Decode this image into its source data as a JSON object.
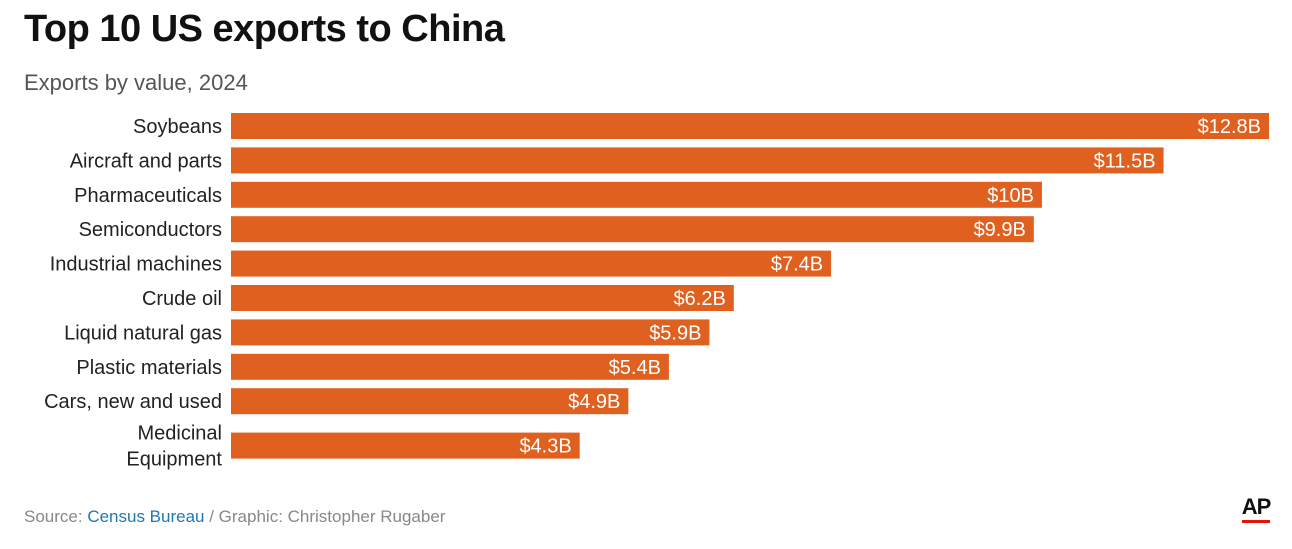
{
  "header": {
    "title": "Top 10 US exports to China",
    "subtitle": "Exports by value, 2024"
  },
  "footer": {
    "source_prefix": "Source: ",
    "source_link": "Census Bureau",
    "graphic_credit": " / Graphic: Christopher Rugaber",
    "logo_text": "AP"
  },
  "colors": {
    "bar": "#e06020",
    "bar_label": "#ffffff",
    "category_label": "#222222"
  },
  "chart_data": {
    "type": "bar",
    "orientation": "horizontal",
    "title": "Top 10 US exports to China",
    "subtitle": "Exports by value, 2024",
    "unit": "billion USD",
    "categories": [
      [
        "Soybeans"
      ],
      [
        "Aircraft and parts"
      ],
      [
        "Pharmaceuticals"
      ],
      [
        "Semiconductors"
      ],
      [
        "Industrial machines"
      ],
      [
        "Crude oil"
      ],
      [
        "Liquid natural gas"
      ],
      [
        "Plastic materials"
      ],
      [
        "Cars, new and used"
      ],
      [
        "Medicinal",
        "Equipment"
      ]
    ],
    "values": [
      12.8,
      11.5,
      10,
      9.9,
      7.4,
      6.2,
      5.9,
      5.4,
      4.9,
      4.3
    ],
    "value_labels": [
      "$12.8B",
      "$11.5B",
      "$10B",
      "$9.9B",
      "$7.4B",
      "$6.2B",
      "$5.9B",
      "$5.4B",
      "$4.9B",
      "$4.3B"
    ],
    "xlim": [
      0,
      12.8
    ]
  }
}
